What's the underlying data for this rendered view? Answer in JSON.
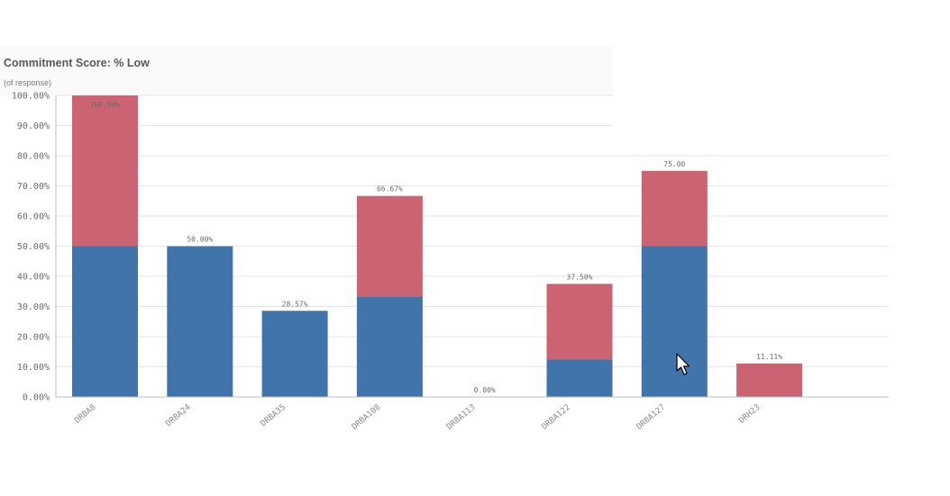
{
  "chart_data": {
    "type": "bar",
    "stacked": true,
    "title": "Commitment Score: % Low",
    "subtitle": "(of response)",
    "categories": [
      "DRBA8",
      "DRBA24",
      "DRBA35",
      "DRBA108",
      "DRBA113",
      "DRBA122",
      "DRBA127",
      "DRH23"
    ],
    "series": [
      {
        "values": [
          50,
          50,
          28.57,
          33.33,
          0,
          12.5,
          50,
          0
        ],
        "color": "#4174aa"
      },
      {
        "values": [
          50,
          0,
          0,
          33.34,
          0,
          25,
          25,
          11.11
        ],
        "color": "#cb6373"
      }
    ],
    "totals": [
      "100.00%",
      "50.00%",
      "28.57%",
      "66.67%",
      "0.00%",
      "37.50%",
      "75.00",
      "11.11%"
    ],
    "yticks": [
      0,
      10,
      20,
      30,
      40,
      50,
      60,
      70,
      80,
      90,
      100
    ],
    "ytick_labels": [
      "0.00%",
      "10.00%",
      "20.00%",
      "30.00%",
      "40.00%",
      "50.00%",
      "60.00%",
      "70.00%",
      "80.00%",
      "90.00%",
      "100.00%"
    ],
    "ylim": [
      0,
      100
    ],
    "grid": true,
    "legend": "none"
  }
}
